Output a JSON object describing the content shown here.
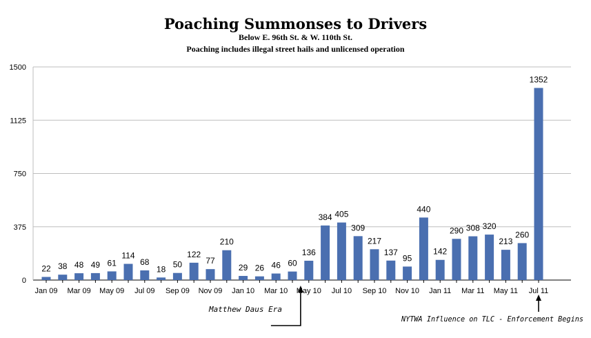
{
  "chart_data": {
    "type": "bar",
    "title": "Poaching Summonses to Drivers",
    "subtitle": "Below E. 96th St. & W. 110th St.",
    "subtitle2": "Poaching includes illegal street hails and unlicensed operation",
    "xlabel": "",
    "ylabel": "",
    "ylim": [
      0,
      1500
    ],
    "yticks": [
      "0",
      "375",
      "750",
      "1125",
      "1500"
    ],
    "grid": true,
    "bar_color": "#4a6fb0",
    "categories": [
      "Jan 09",
      "Feb 09",
      "Mar 09",
      "Apr 09",
      "May 09",
      "Jun 09",
      "Jul 09",
      "Aug 09",
      "Sep 09",
      "Oct 09",
      "Nov 09",
      "Dec 09",
      "Jan 10",
      "Feb 10",
      "Mar 10",
      "Apr 10",
      "May 10",
      "Jun 10",
      "Jul 10",
      "Aug 10",
      "Sep 10",
      "Oct 10",
      "Nov 10",
      "Dec 10",
      "Jan 11",
      "Feb 11",
      "Mar 11",
      "Apr 11",
      "May 11",
      "Jun 11",
      "Jul 11"
    ],
    "xtick_labels": [
      "Jan 09",
      "",
      "Mar 09",
      "",
      "May 09",
      "",
      "Jul 09",
      "",
      "Sep 09",
      "",
      "Nov 09",
      "",
      "Jan 10",
      "",
      "Mar 10",
      "",
      "May 10",
      "",
      "Jul 10",
      "",
      "Sep 10",
      "",
      "Nov 10",
      "",
      "Jan 11",
      "",
      "Mar 11",
      "",
      "May 11",
      "",
      "Jul 11"
    ],
    "values": [
      22,
      38,
      48,
      49,
      61,
      114,
      68,
      18,
      50,
      122,
      77,
      210,
      29,
      26,
      46,
      60,
      136,
      384,
      405,
      309,
      217,
      137,
      95,
      440,
      142,
      290,
      308,
      320,
      213,
      260,
      1352
    ],
    "annotations": [
      {
        "text": "Matthew Daus Era",
        "category": "Apr 10"
      },
      {
        "text": "NYTWA Influence on TLC - Enforcement Begins",
        "category": "Jul 11"
      }
    ]
  }
}
